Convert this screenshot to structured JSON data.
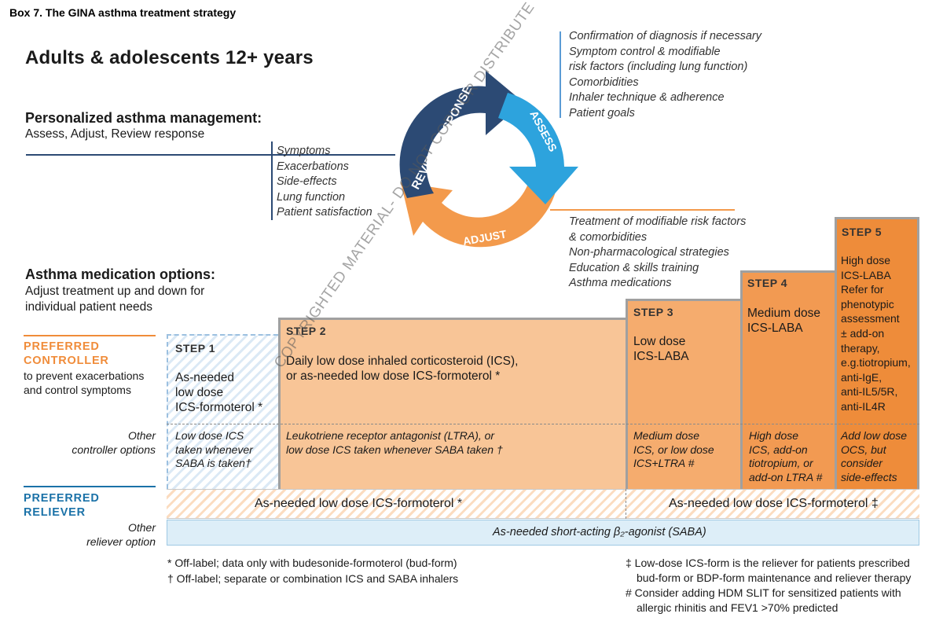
{
  "box_title": "Box 7. The GINA asthma treatment strategy",
  "main_title": "Adults & adolescents 12+ years",
  "personalized": {
    "heading": "Personalized asthma management:",
    "sub": "Assess, Adjust, Review response"
  },
  "medication": {
    "heading": "Asthma medication options:",
    "sub": [
      "Adjust treatment up and down for",
      "individual patient needs"
    ]
  },
  "cycle": {
    "review_label": "REVIEW RESPONSE",
    "assess_label": "ASSESS",
    "adjust_label": "ADJUST"
  },
  "assess_items": [
    "Confirmation of diagnosis if necessary",
    "Symptom control & modifiable",
    "risk factors (including lung function)",
    "Comorbidities",
    "Inhaler technique & adherence",
    "Patient goals"
  ],
  "review_items": [
    "Symptoms",
    "Exacerbations",
    "Side-effects",
    "Lung function",
    "Patient satisfaction"
  ],
  "adjust_items": [
    "Treatment of modifiable risk factors",
    "& comorbidities",
    "Non-pharmacological strategies",
    "Education & skills training",
    "Asthma medications"
  ],
  "left": {
    "preferred_controller": [
      "PREFERRED",
      "CONTROLLER"
    ],
    "controller_note": [
      "to prevent exacerbations",
      "and control symptoms"
    ],
    "other_controller": [
      "Other",
      "controller options"
    ],
    "preferred_reliever": [
      "PREFERRED",
      "RELIEVER"
    ],
    "other_reliever": [
      "Other",
      "reliever option"
    ]
  },
  "steps": [
    {
      "label": "STEP 1",
      "controller": [
        "As-needed",
        "low dose",
        "ICS-formoterol *"
      ],
      "other": [
        "Low dose ICS",
        "taken whenever",
        "SABA is taken†"
      ]
    },
    {
      "label": "STEP 2",
      "controller": [
        "Daily low dose inhaled corticosteroid (ICS),",
        "or as-needed low dose ICS-formoterol *"
      ],
      "other": [
        "Leukotriene receptor antagonist (LTRA), or",
        "low dose ICS taken whenever SABA taken †"
      ]
    },
    {
      "label": "STEP 3",
      "controller": [
        "Low dose",
        "ICS-LABA"
      ],
      "other": [
        "Medium dose",
        "ICS, or low dose",
        "ICS+LTRA #"
      ]
    },
    {
      "label": "STEP 4",
      "controller": [
        "Medium dose",
        "ICS-LABA"
      ],
      "other": [
        "High dose",
        "ICS, add-on",
        "tiotropium, or",
        "add-on LTRA #"
      ]
    },
    {
      "label": "STEP 5",
      "controller": [
        "High dose",
        "ICS-LABA",
        "Refer for",
        "phenotypic",
        "assessment",
        "± add-on",
        "therapy,",
        "e.g.tiotropium,",
        "anti-IgE,",
        "anti-IL5/5R,",
        "anti-IL4R"
      ],
      "other": [
        "Add low dose",
        "OCS, but",
        "consider",
        "side-effects"
      ]
    }
  ],
  "reliever": {
    "steps_1_2": "As-needed low dose ICS-formoterol *",
    "steps_3_5": "As-needed low dose ICS-formoterol ‡",
    "saba": "As-needed short-acting β₂-agonist (SABA)"
  },
  "footnotes": {
    "star": "*  Off-label; data only with budesonide-formoterol (bud-form)",
    "dagger": "† Off-label; separate or combination ICS and SABA inhalers",
    "ddagger": [
      "‡ Low-dose ICS-form is the reliever for patients prescribed",
      "bud-form or BDP-form maintenance  and reliever therapy"
    ],
    "hash": [
      "# Consider adding HDM SLIT for sensitized  patients with",
      "allergic rhinitis and FEV1 >70% predicted"
    ]
  },
  "watermark": "COPYRIGHTED MATERIAL- DO NOT COPY OR DISTRIBUTE",
  "colors": {
    "review_arrow": "#2c4a74",
    "assess_arrow": "#2da3dd",
    "adjust_arrow": "#f39a4c",
    "controller_label": "#f08c3a",
    "reliever_label": "#1b72a8"
  }
}
